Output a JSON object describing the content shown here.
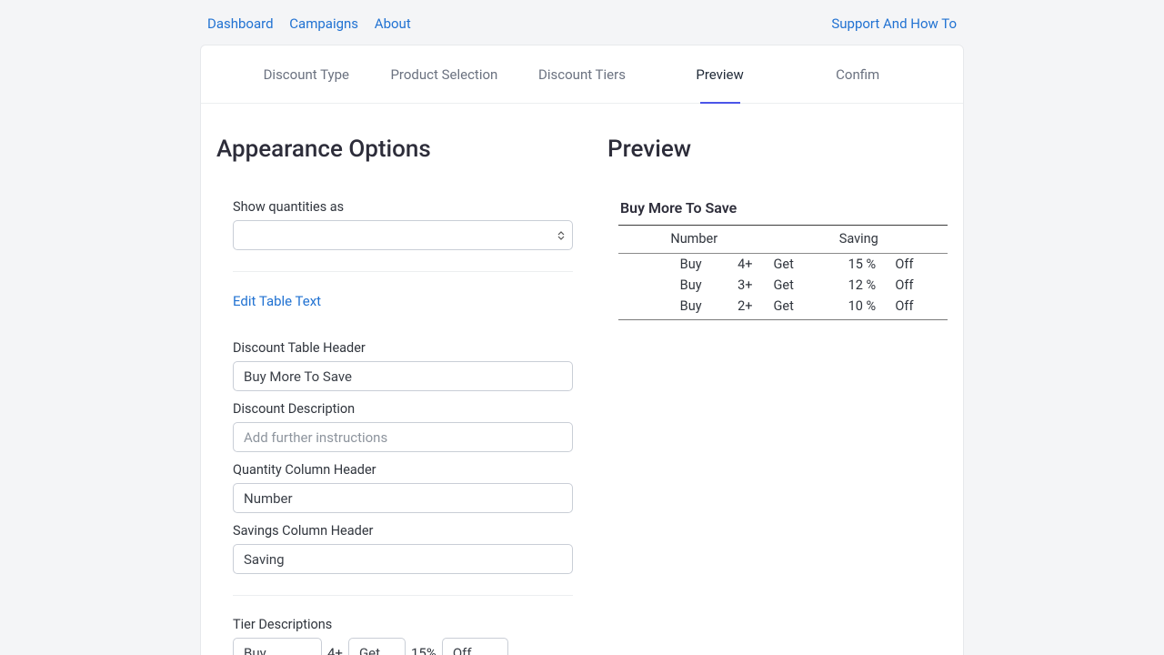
{
  "nav": {
    "dashboard": "Dashboard",
    "campaigns": "Campaigns",
    "about": "About",
    "support": "Support And How To"
  },
  "tabs": {
    "discount_type": "Discount Type",
    "product_selection": "Product Selection",
    "discount_tiers": "Discount Tiers",
    "preview": "Preview",
    "confirm": "Confim"
  },
  "headings": {
    "appearance": "Appearance Options",
    "preview": "Preview"
  },
  "form": {
    "show_quantities_label": "Show quantities as",
    "edit_table_text": "Edit Table Text",
    "discount_table_header_label": "Discount Table Header",
    "discount_table_header_value": "Buy More To Save",
    "discount_description_label": "Discount Description",
    "discount_description_placeholder": "Add further instructions",
    "quantity_col_label": "Quantity Column Header",
    "quantity_col_value": "Number",
    "savings_col_label": "Savings Column Header",
    "savings_col_value": "Saving",
    "tier_descriptions_label": "Tier Descriptions",
    "tier_buy": "Buy",
    "tier_qty": "4+",
    "tier_get": "Get",
    "tier_pct": "15%",
    "tier_off": "Off"
  },
  "preview": {
    "title": "Buy More To Save",
    "col_number": "Number",
    "col_saving": "Saving",
    "rows": [
      {
        "buy": "Buy",
        "qty": "4+",
        "get": "Get",
        "pct": "15 %",
        "off": "Off"
      },
      {
        "buy": "Buy",
        "qty": "3+",
        "get": "Get",
        "pct": "12 %",
        "off": "Off"
      },
      {
        "buy": "Buy",
        "qty": "2+",
        "get": "Get",
        "pct": "10 %",
        "off": "Off"
      }
    ]
  }
}
